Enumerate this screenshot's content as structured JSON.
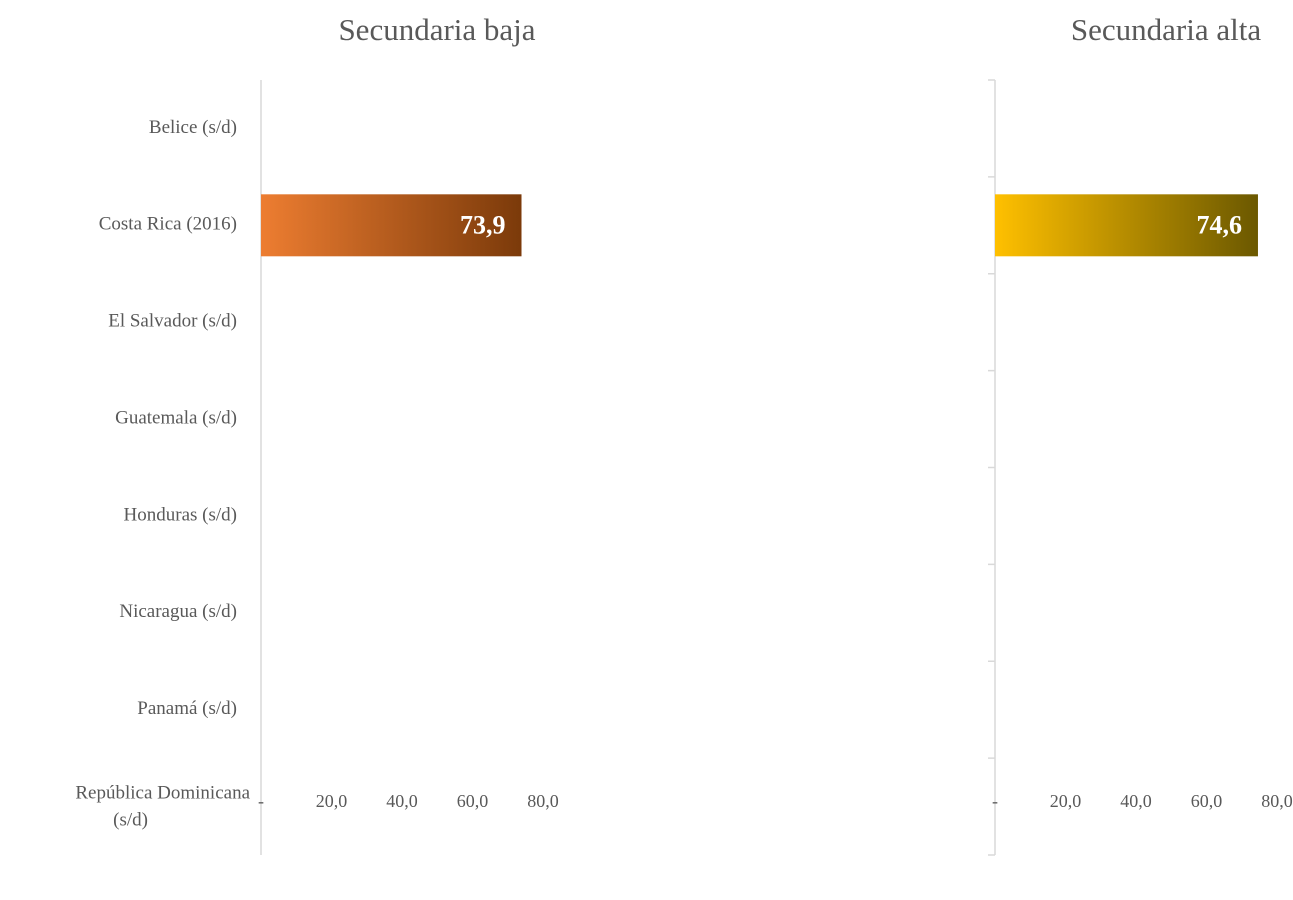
{
  "chart_data": [
    {
      "type": "bar",
      "orientation": "horizontal",
      "title": "Secundaria baja",
      "categories": [
        "Belice (s/d)",
        "Costa Rica (2016)",
        "El Salvador (s/d)",
        "Guatemala (s/d)",
        "Honduras (s/d)",
        "Nicaragua (s/d)",
        "Panamá (s/d)",
        "República Dominicana (s/d)"
      ],
      "values": [
        null,
        73.9,
        null,
        null,
        null,
        null,
        null,
        null
      ],
      "value_labels": [
        null,
        "73,9",
        null,
        null,
        null,
        null,
        null,
        null
      ],
      "gradient": [
        "#ED7D31",
        "#7B3A0A"
      ],
      "xlim": [
        0,
        80
      ],
      "xticks": [
        {
          "value": 0,
          "label": "-"
        },
        {
          "value": 20,
          "label": "20,0"
        },
        {
          "value": 40,
          "label": "40,0"
        },
        {
          "value": 60,
          "label": "60,0"
        },
        {
          "value": 80,
          "label": "80,0"
        }
      ],
      "category_ticks": false
    },
    {
      "type": "bar",
      "orientation": "horizontal",
      "title": "Secundaria alta",
      "values": [
        null,
        74.6,
        null,
        null,
        null,
        null,
        null,
        null
      ],
      "value_labels": [
        null,
        "74,6",
        null,
        null,
        null,
        null,
        null,
        null
      ],
      "gradient": [
        "#FFC000",
        "#6B5800"
      ],
      "xlim": [
        0,
        80
      ],
      "xticks": [
        {
          "value": 0,
          "label": "-"
        },
        {
          "value": 20,
          "label": "20,0"
        },
        {
          "value": 40,
          "label": "40,0"
        },
        {
          "value": 60,
          "label": "60,0"
        },
        {
          "value": 80,
          "label": "80,0"
        }
      ],
      "category_ticks": true
    }
  ]
}
